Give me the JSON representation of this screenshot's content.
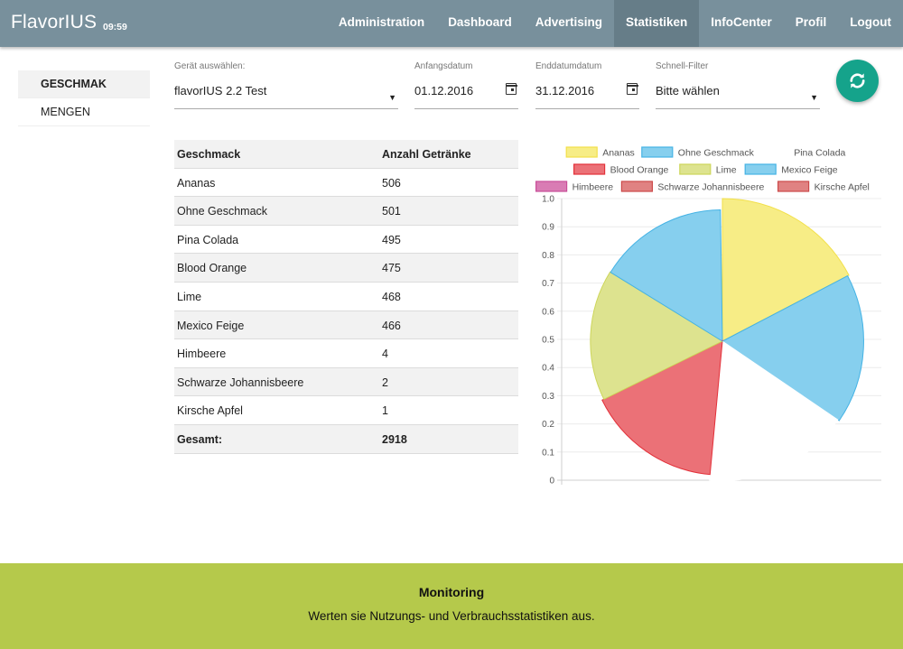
{
  "header": {
    "brand": "FlavorIUS",
    "clock": "09:59",
    "nav": [
      "Administration",
      "Dashboard",
      "Advertising",
      "Statistiken",
      "InfoCenter",
      "Profil",
      "Logout"
    ],
    "active_nav": "Statistiken"
  },
  "sidebar": {
    "items": [
      "GESCHMAK",
      "MENGEN"
    ],
    "active": "GESCHMAK"
  },
  "filters": {
    "device": {
      "label": "Gerät auswählen:",
      "value": "flavorIUS 2.2 Test"
    },
    "start_date": {
      "label": "Anfangsdatum",
      "value": "01.12.2016"
    },
    "end_date": {
      "label": "Enddatumdatum",
      "value": "31.12.2016"
    },
    "quick_filter": {
      "label": "Schnell-Filter",
      "value": "Bitte wählen"
    }
  },
  "table": {
    "headers": [
      "Geschmack",
      "Anzahl Getränke"
    ],
    "rows": [
      [
        "Ananas",
        "506"
      ],
      [
        "Ohne Geschmack",
        "501"
      ],
      [
        "Pina Colada",
        "495"
      ],
      [
        "Blood Orange",
        "475"
      ],
      [
        "Lime",
        "468"
      ],
      [
        "Mexico Feige",
        "466"
      ],
      [
        "Himbeere",
        "4"
      ],
      [
        "Schwarze Johannisbeere",
        "2"
      ],
      [
        "Kirsche Apfel",
        "1"
      ]
    ],
    "total": [
      "Gesamt:",
      "2918"
    ]
  },
  "chart_data": {
    "type": "pie",
    "legend_position": "top",
    "y_ticks": [
      "1.0",
      "0.9",
      "0.8",
      "0.7",
      "0.6",
      "0.5",
      "0.4",
      "0.3",
      "0.2",
      "0.1",
      "0"
    ],
    "grid": true,
    "slices": [
      {
        "label": "Ananas",
        "value": 506,
        "fill": "#f7ed86",
        "stroke": "#f2e04a",
        "legend_swatch": true
      },
      {
        "label": "Ohne Geschmack",
        "value": 501,
        "fill": "#86cfee",
        "stroke": "#45b3e5",
        "legend_swatch": true
      },
      {
        "label": "Pina Colada",
        "value": 495,
        "fill": "#ffffff",
        "stroke": "#ffffff",
        "legend_swatch": false
      },
      {
        "label": "Blood Orange",
        "value": 475,
        "fill": "#eb7177",
        "stroke": "#e3313a",
        "legend_swatch": true
      },
      {
        "label": "Lime",
        "value": 468,
        "fill": "#dde38f",
        "stroke": "#cdd65a",
        "legend_swatch": true
      },
      {
        "label": "Mexico Feige",
        "value": 466,
        "fill": "#86cfee",
        "stroke": "#45b3e5",
        "legend_swatch": true
      },
      {
        "label": "Himbeere",
        "value": 4,
        "fill": "#d97cb4",
        "stroke": "#c94f99",
        "legend_swatch": true
      },
      {
        "label": "Schwarze Johannisbeere",
        "value": 2,
        "fill": "#e08282",
        "stroke": "#cc4a4a",
        "legend_swatch": true
      },
      {
        "label": "Kirsche Apfel",
        "value": 1,
        "fill": "#e08282",
        "stroke": "#cc4a4a",
        "legend_swatch": true
      }
    ]
  },
  "footer": {
    "title": "Monitoring",
    "subtitle": "Werten sie Nutzungs- und Verbrauchsstatistiken aus."
  },
  "colors": {
    "topbar": "#78909c",
    "accent": "#15a38b",
    "footer": "#b5c94b"
  },
  "icons": {
    "refresh": "refresh-icon",
    "calendar": "calendar-icon",
    "dropdown": "caret-down-icon"
  }
}
